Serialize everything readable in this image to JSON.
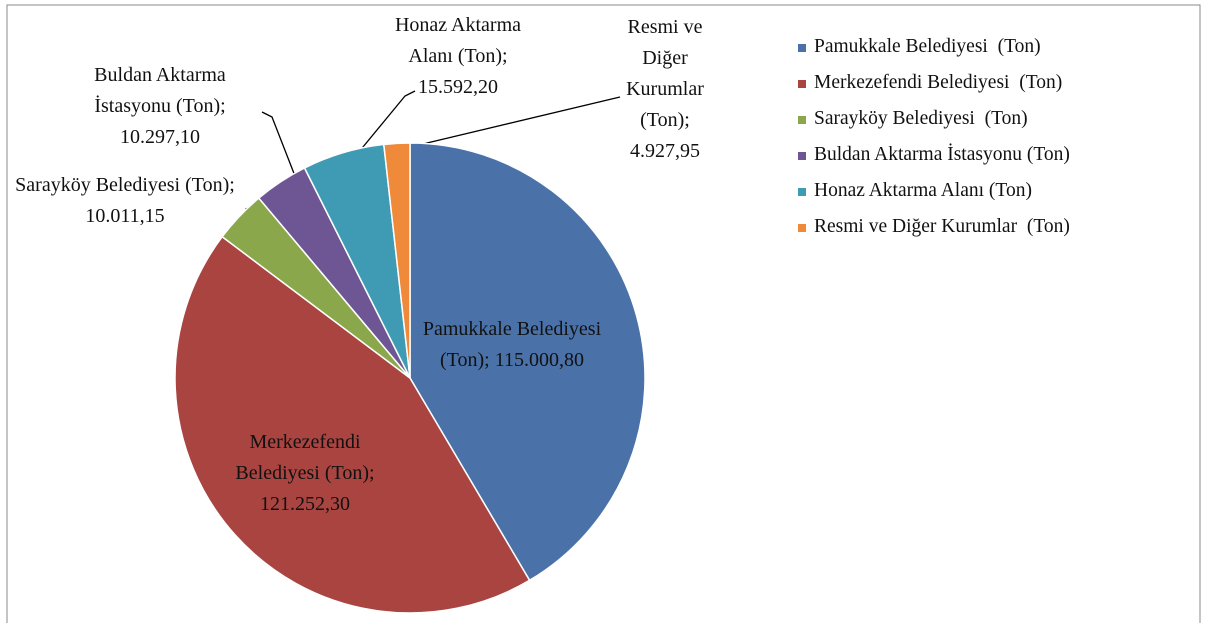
{
  "chart_data": {
    "type": "pie",
    "categories": [
      "Pamukkale Belediyesi  (Ton)",
      "Merkezefendi Belediyesi  (Ton)",
      "Sarayköy Belediyesi  (Ton)",
      "Buldan Aktarma İstasyonu (Ton)",
      "Honaz Aktarma Alanı (Ton)",
      "Resmi ve Diğer Kurumlar  (Ton)"
    ],
    "values": [
      115000.8,
      121252.3,
      10011.15,
      10297.1,
      15592.2,
      4927.95
    ],
    "value_labels": [
      "115.000,80",
      "121.252,30",
      "10.011,15",
      "10.297,10",
      "15.592,20",
      "4.927,95"
    ],
    "colors": [
      "#4a72a9",
      "#a94441",
      "#8aa84b",
      "#6e5594",
      "#3f9bb3",
      "#ee8a3a"
    ],
    "legend": "right"
  }
}
